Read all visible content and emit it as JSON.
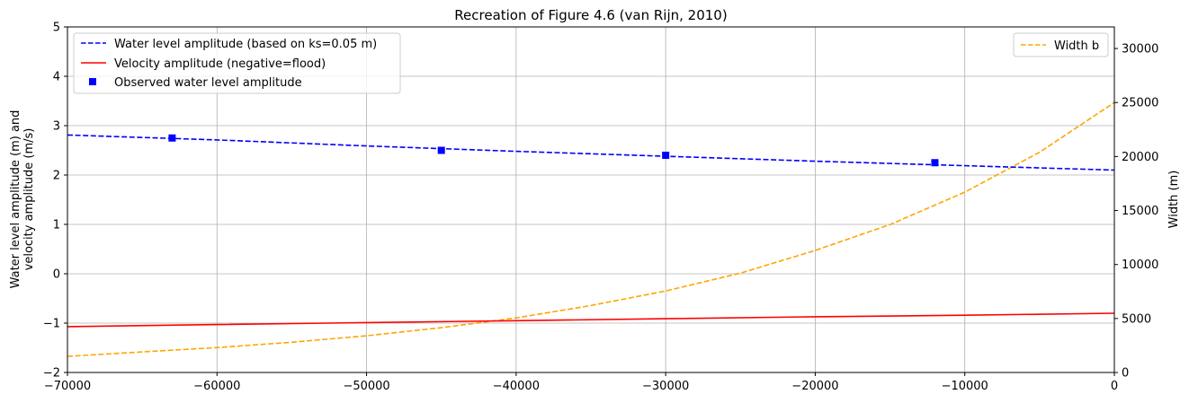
{
  "chart_data": {
    "type": "line",
    "title": "Recreation of Figure 4.6 (van Rijn, 2010)",
    "xlabel": "",
    "ylabel_left": [
      "Water level amplitude (m) and",
      "velocity amplitude (m/s)"
    ],
    "ylabel_right": "Width (m)",
    "xlim": [
      -70000,
      0
    ],
    "ylim_left": [
      -2,
      5
    ],
    "ylim_right": [
      0,
      32000
    ],
    "x_ticks": [
      -70000,
      -60000,
      -50000,
      -40000,
      -30000,
      -20000,
      -10000,
      0
    ],
    "x_tick_labels": [
      "−70000",
      "−60000",
      "−50000",
      "−40000",
      "−30000",
      "−20000",
      "−10000",
      "0"
    ],
    "y_left_ticks": [
      -2,
      -1,
      0,
      1,
      2,
      3,
      4,
      5
    ],
    "y_left_tick_labels": [
      "−2",
      "−1",
      "0",
      "1",
      "2",
      "3",
      "4",
      "5"
    ],
    "y_right_ticks": [
      0,
      5000,
      10000,
      15000,
      20000,
      25000,
      30000
    ],
    "y_right_tick_labels": [
      "0",
      "5000",
      "10000",
      "15000",
      "20000",
      "25000",
      "30000"
    ],
    "grid": true,
    "legend_left_placement": "top-left",
    "legend_right_placement": "top-right",
    "series": [
      {
        "name": "Water level amplitude (based on ks=0.05 m)",
        "axis": "left",
        "style": "dashed",
        "color": "#0000ff",
        "x": [
          -70000,
          -60000,
          -50000,
          -40000,
          -30000,
          -20000,
          -10000,
          0
        ],
        "y": [
          2.81,
          2.71,
          2.59,
          2.48,
          2.38,
          2.28,
          2.19,
          2.1
        ]
      },
      {
        "name": "Velocity amplitude (negative=flood)",
        "axis": "left",
        "style": "solid",
        "color": "#ff0000",
        "x": [
          -70000,
          -60000,
          -50000,
          -40000,
          -30000,
          -20000,
          -10000,
          0
        ],
        "y": [
          -1.07,
          -1.03,
          -0.99,
          -0.95,
          -0.91,
          -0.87,
          -0.84,
          -0.8
        ]
      },
      {
        "name": "Observed water level amplitude",
        "axis": "left",
        "style": "markers",
        "color": "#0000ff",
        "x": [
          -63000,
          -45000,
          -30000,
          -12000
        ],
        "y": [
          2.75,
          2.5,
          2.4,
          2.25
        ]
      },
      {
        "name": "Width b",
        "axis": "right",
        "style": "dashed",
        "color": "#ffa500",
        "x": [
          -70000,
          -65000,
          -60000,
          -55000,
          -50000,
          -45000,
          -40000,
          -35000,
          -30000,
          -25000,
          -20000,
          -15000,
          -10000,
          -5000,
          0
        ],
        "y": [
          1500,
          1900,
          2300,
          2800,
          3400,
          4150,
          5050,
          6200,
          7550,
          9200,
          11300,
          13700,
          16700,
          20400,
          25000
        ]
      }
    ]
  }
}
